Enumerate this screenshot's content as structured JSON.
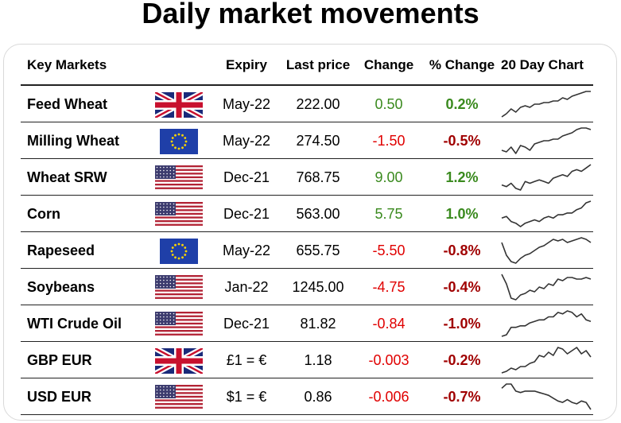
{
  "title": "Daily market movements",
  "headers": {
    "market": "Key Markets",
    "expiry": "Expiry",
    "last": "Last price",
    "change": "Change",
    "pct": "% Change",
    "chart": "20 Day Chart"
  },
  "colors": {
    "up": "#3a8a1e",
    "down": "#e00000",
    "down_pct": "#a00000"
  },
  "rows": [
    {
      "name": "Feed Wheat",
      "flag": "uk",
      "expiry": "May-22",
      "last": "222.00",
      "change": "0.50",
      "pct": "0.2%",
      "dir": "up",
      "spark": [
        1,
        3,
        6,
        4,
        7,
        8,
        7,
        9,
        9,
        10,
        10,
        11,
        11,
        13,
        12,
        14,
        15,
        16,
        17,
        17
      ]
    },
    {
      "name": "Milling Wheat",
      "flag": "eu",
      "expiry": "May-22",
      "last": "274.50",
      "change": "-1.50",
      "pct": "-0.5%",
      "dir": "down",
      "spark": [
        4,
        3,
        6,
        2,
        7,
        6,
        4,
        8,
        9,
        10,
        10,
        11,
        11,
        13,
        14,
        15,
        17,
        18,
        18,
        17
      ]
    },
    {
      "name": "Wheat SRW",
      "flag": "us",
      "expiry": "Dec-21",
      "last": "768.75",
      "change": "9.00",
      "pct": "1.2%",
      "dir": "up",
      "spark": [
        7,
        6,
        8,
        5,
        4,
        9,
        8,
        9,
        10,
        9,
        8,
        11,
        12,
        13,
        12,
        15,
        16,
        15,
        17,
        19
      ]
    },
    {
      "name": "Corn",
      "flag": "us",
      "expiry": "Dec-21",
      "last": "563.00",
      "change": "5.75",
      "pct": "1.0%",
      "dir": "up",
      "spark": [
        8,
        9,
        6,
        5,
        3,
        5,
        6,
        7,
        6,
        8,
        9,
        8,
        10,
        10,
        11,
        11,
        13,
        14,
        17,
        18
      ]
    },
    {
      "name": "Rapeseed",
      "flag": "eu",
      "expiry": "May-22",
      "last": "655.75",
      "change": "-5.50",
      "pct": "-0.8%",
      "dir": "down",
      "spark": [
        15,
        7,
        3,
        2,
        5,
        7,
        8,
        10,
        12,
        13,
        15,
        17,
        16,
        17,
        15,
        16,
        17,
        18,
        17,
        15
      ]
    },
    {
      "name": "Soybeans",
      "flag": "us",
      "expiry": "Jan-22",
      "last": "1245.00",
      "change": "-4.75",
      "pct": "-0.4%",
      "dir": "down",
      "spark": [
        19,
        13,
        4,
        3,
        6,
        7,
        9,
        8,
        11,
        10,
        13,
        12,
        16,
        15,
        17,
        17,
        16,
        16,
        17,
        16
      ]
    },
    {
      "name": "WTI Crude Oil",
      "flag": "us",
      "expiry": "Dec-21",
      "last": "81.82",
      "change": "-0.84",
      "pct": "-1.0%",
      "dir": "down",
      "spark": [
        1,
        2,
        7,
        7,
        8,
        8,
        10,
        11,
        12,
        12,
        14,
        14,
        17,
        16,
        18,
        17,
        14,
        16,
        12,
        11
      ]
    },
    {
      "name": "GBP EUR",
      "flag": "uk",
      "expiry": "£1 = €",
      "last": "1.18",
      "change": "-0.003",
      "pct": "-0.2%",
      "dir": "down",
      "spark": [
        2,
        3,
        5,
        4,
        6,
        6,
        8,
        9,
        13,
        12,
        15,
        13,
        18,
        17,
        14,
        16,
        18,
        14,
        16,
        12
      ]
    },
    {
      "name": "USD EUR",
      "flag": "us",
      "expiry": "$1 = €",
      "last": "0.86",
      "change": "-0.006",
      "pct": "-0.7%",
      "dir": "down",
      "spark": [
        16,
        19,
        19,
        14,
        13,
        14,
        14,
        14,
        13,
        12,
        11,
        9,
        7,
        6,
        8,
        6,
        5,
        7,
        6,
        1
      ]
    }
  ]
}
